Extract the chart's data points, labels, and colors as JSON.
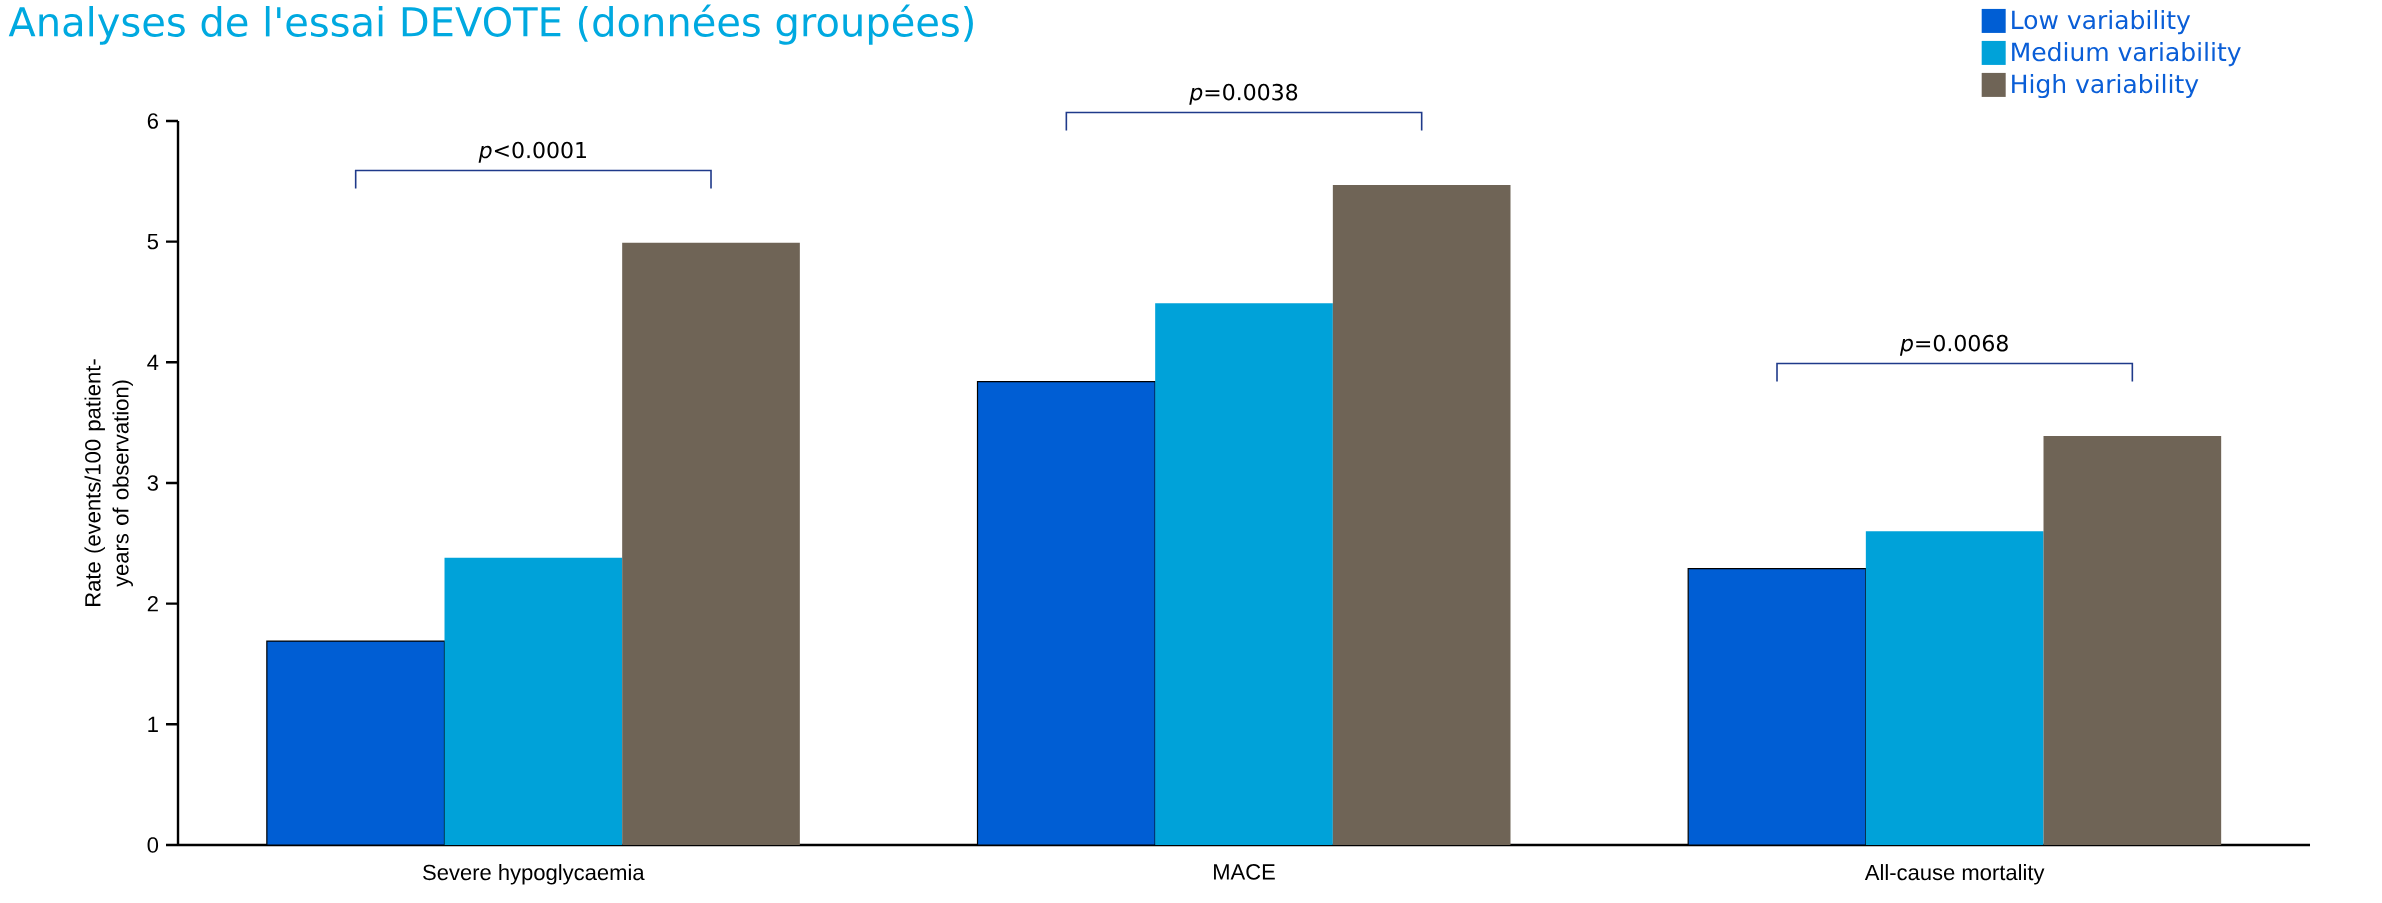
{
  "chart_data": {
    "type": "bar",
    "title": "Analyses de l'essai DEVOTE (données groupées)",
    "ylabel": "Rate (events/100 patient-years of observation)",
    "categories": [
      "Severe hypoglycaemia",
      "MACE",
      "All-cause mortality"
    ],
    "series": [
      {
        "name": "Low variability",
        "color": "#005ed4",
        "values": [
          1.69,
          3.84,
          2.29
        ]
      },
      {
        "name": "Medium variability",
        "color": "#00a2d9",
        "values": [
          2.38,
          4.49,
          2.6
        ]
      },
      {
        "name": "High variability",
        "color": "#6f6456",
        "values": [
          4.99,
          5.47,
          3.39
        ]
      }
    ],
    "ylim": [
      0,
      6
    ],
    "yticks": [
      0,
      1,
      2,
      3,
      4,
      5,
      6
    ],
    "legend": "top right",
    "grid": false,
    "annotations": [
      "*p*<0.0001",
      "*p*=0.0038",
      "*p*=0.0068"
    ]
  }
}
